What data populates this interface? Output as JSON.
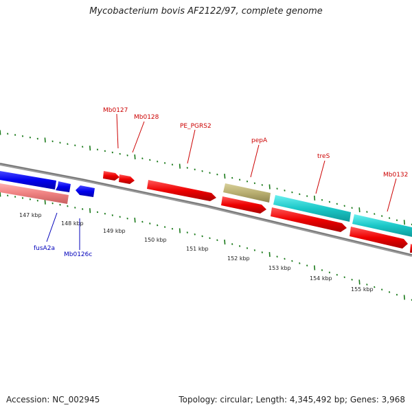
{
  "header": {
    "title": "Mycobacterium bovis AF2122/97, complete genome"
  },
  "footer": {
    "accession": "Accession: NC_002945",
    "summary": "Topology: circular; Length: 4,345,492 bp; Genes: 3,968"
  },
  "colors": {
    "backbone": "#777777",
    "tick": "#1a7a1a",
    "label_top": "#cc0000",
    "label_bottom": "#0000bb"
  },
  "ticks": [
    {
      "label": "147 kbp"
    },
    {
      "label": "148 kbp"
    },
    {
      "label": "149 kbp"
    },
    {
      "label": "150 kbp"
    },
    {
      "label": "151 kbp"
    },
    {
      "label": "152 kbp"
    },
    {
      "label": "153 kbp"
    },
    {
      "label": "154 kbp"
    },
    {
      "label": "155 kbp"
    }
  ],
  "genes": [
    {
      "name": "Mb0127",
      "color": "red",
      "labeled": true
    },
    {
      "name": "Mb0128",
      "color": "red",
      "labeled": true
    },
    {
      "name": "PE_PGRS2",
      "color": "red",
      "labeled": true
    },
    {
      "name": "pepA",
      "color": "olive",
      "labeled": true
    },
    {
      "name": "treS",
      "color": "cyan",
      "labeled": true
    },
    {
      "name": "Mb0132",
      "color": "cyan",
      "labeled": true
    },
    {
      "name": "fusA2a",
      "color": "blue",
      "labeled": true
    },
    {
      "name": "Mb0126c",
      "color": "blue",
      "labeled": true
    }
  ]
}
